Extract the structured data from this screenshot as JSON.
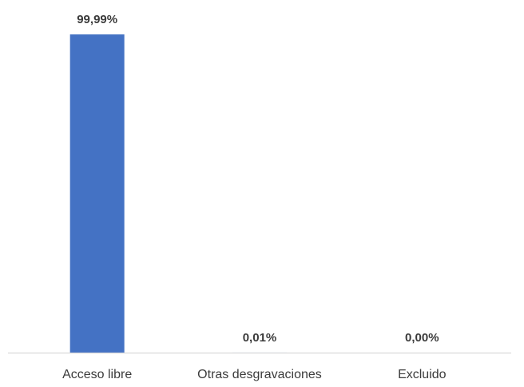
{
  "chart_data": {
    "type": "bar",
    "categories": [
      "Acceso libre",
      "Otras desgravaciones",
      "Excluido"
    ],
    "values": [
      99.99,
      0.01,
      0.0
    ],
    "data_labels": [
      "99,99%",
      "0,01%",
      "0,00%"
    ],
    "ylim": [
      0,
      100
    ],
    "grid": false,
    "legend": "none",
    "colors": {
      "bar": "#4472C4",
      "axis": "#D9D9D9",
      "text": "#3B3B3B"
    }
  }
}
